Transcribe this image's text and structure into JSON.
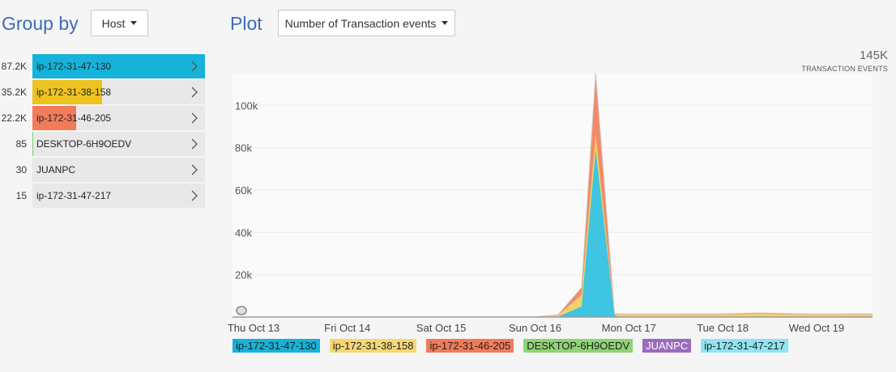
{
  "group_by": {
    "label": "Group by",
    "selected": "Host"
  },
  "plot": {
    "label": "Plot",
    "selected": "Number of Transaction events"
  },
  "total": {
    "value": "145K",
    "label": "TRANSACTION EVENTS"
  },
  "groups": [
    {
      "count": "87.2K",
      "name": "ip-172-31-47-130",
      "fraction": 1.0,
      "color": "#15b3d9"
    },
    {
      "count": "35.2K",
      "name": "ip-172-31-38-158",
      "fraction": 0.404,
      "color": "#efc31f"
    },
    {
      "count": "22.2K",
      "name": "ip-172-31-46-205",
      "fraction": 0.255,
      "color": "#f27b5a"
    },
    {
      "count": "85",
      "name": "DESKTOP-6H9OEDV",
      "fraction": 0.001,
      "color": "#7ed06b"
    },
    {
      "count": "30",
      "name": "JUANPC",
      "fraction": 0.0003,
      "color": "#9b6bbd"
    },
    {
      "count": "15",
      "name": "ip-172-31-47-217",
      "fraction": 0.0002,
      "color": "#8fe0f0"
    }
  ],
  "chart_data": {
    "type": "area",
    "stacked": true,
    "x": [
      "Thu Oct 13",
      "Fri Oct 14",
      "Sat Oct 15",
      "Sun Oct 16",
      "Mon Oct 17",
      "Tue Oct 18",
      "Wed Oct 19"
    ],
    "x_ticks": [
      "Thu Oct 13",
      "Fri Oct 14",
      "Sat Oct 15",
      "Sun Oct 16",
      "Mon Oct 17",
      "Tue Oct 18",
      "Wed Oct 19"
    ],
    "y_ticks": [
      "0",
      "20k",
      "40k",
      "60k",
      "80k",
      "100k"
    ],
    "ylim": [
      0,
      115000
    ],
    "grid": true,
    "legend_placement": "bottom",
    "x_domain_days": [
      0,
      6.7
    ],
    "series": [
      {
        "name": "ip-172-31-47-130",
        "color": "#3fc4e2",
        "points": [
          [
            0,
            0
          ],
          [
            3.1,
            0
          ],
          [
            3.35,
            200
          ],
          [
            3.6,
            5000
          ],
          [
            3.75,
            79000
          ],
          [
            3.95,
            1000
          ],
          [
            4.0,
            0
          ],
          [
            6.7,
            0
          ]
        ]
      },
      {
        "name": "ip-172-31-38-158",
        "color": "#f2d36b",
        "points": [
          [
            0,
            0
          ],
          [
            3.1,
            0
          ],
          [
            3.35,
            600
          ],
          [
            3.6,
            5500
          ],
          [
            3.75,
            7000
          ],
          [
            3.95,
            400
          ],
          [
            4.0,
            1200
          ],
          [
            5.0,
            1100
          ],
          [
            5.5,
            1500
          ],
          [
            6.0,
            1100
          ],
          [
            6.7,
            1200
          ]
        ]
      },
      {
        "name": "ip-172-31-46-205",
        "color": "#f28a6a",
        "points": [
          [
            0,
            0
          ],
          [
            3.1,
            0
          ],
          [
            3.35,
            300
          ],
          [
            3.6,
            3500
          ],
          [
            3.75,
            29000
          ],
          [
            3.95,
            300
          ],
          [
            4.0,
            300
          ],
          [
            5.0,
            300
          ],
          [
            5.5,
            400
          ],
          [
            6.0,
            300
          ],
          [
            6.7,
            300
          ]
        ]
      },
      {
        "name": "DESKTOP-6H9OEDV",
        "color": "#7ed06b",
        "points": [
          [
            0,
            0
          ],
          [
            3.7,
            0
          ],
          [
            3.75,
            85
          ],
          [
            3.8,
            0
          ],
          [
            6.7,
            0
          ]
        ]
      },
      {
        "name": "JUANPC",
        "color": "#9b6bbd",
        "points": [
          [
            0,
            0
          ],
          [
            3.7,
            0
          ],
          [
            3.75,
            30
          ],
          [
            3.8,
            0
          ],
          [
            6.7,
            0
          ]
        ]
      },
      {
        "name": "ip-172-31-47-217",
        "color": "#8fe0f0",
        "points": [
          [
            0,
            0
          ],
          [
            3.7,
            0
          ],
          [
            3.75,
            15
          ],
          [
            3.8,
            0
          ],
          [
            6.7,
            0
          ]
        ]
      }
    ]
  },
  "legend": [
    {
      "label": "ip-172-31-47-130",
      "color": "#15b3d9"
    },
    {
      "label": "ip-172-31-38-158",
      "color": "#f7d774"
    },
    {
      "label": "ip-172-31-46-205",
      "color": "#f27b5a"
    },
    {
      "label": "DESKTOP-6H9OEDV",
      "color": "#8fd475"
    },
    {
      "label": "JUANPC",
      "color": "#9b6bbd"
    },
    {
      "label": "ip-172-31-47-217",
      "color": "#8fe4f2"
    }
  ]
}
